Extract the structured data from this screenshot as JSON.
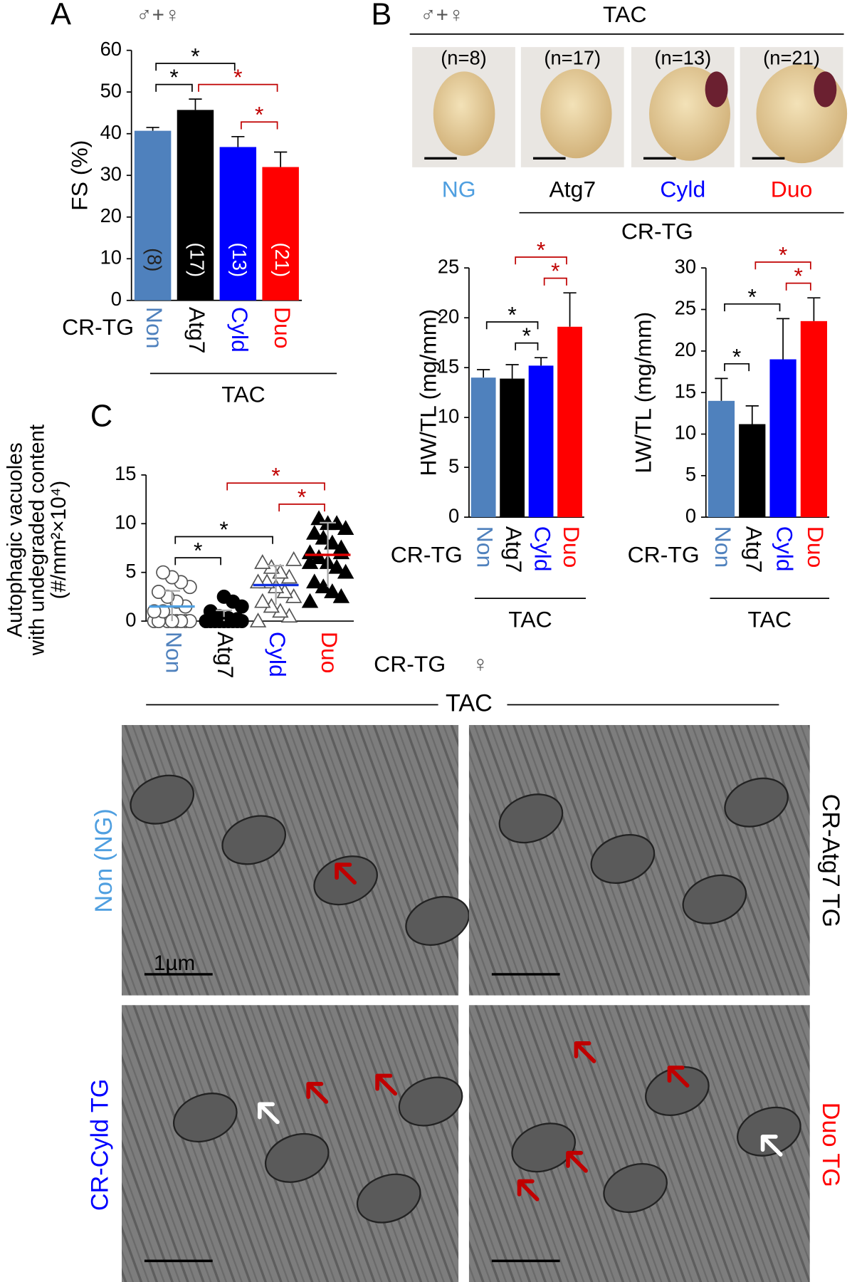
{
  "chart_data": [
    {
      "type": "bar",
      "sex": "♂+♀",
      "ylabel": "FS (%)",
      "group_label": "CR-TG",
      "treatment": "TAC",
      "categories": [
        "Non",
        "Atg7",
        "Cyld",
        "Duo"
      ],
      "category_colors": [
        "#4f81bd",
        "#000000",
        "#0000ff",
        "#ff0000"
      ],
      "values": [
        40.7,
        45.7,
        36.8,
        32.0
      ],
      "errors": [
        0.8,
        2.6,
        2.5,
        3.6
      ],
      "counts": [
        "(8)",
        "(17)",
        "(13)",
        "(21)"
      ],
      "ylim": [
        0,
        60
      ],
      "yticks": [
        0,
        10,
        20,
        30,
        40,
        50,
        60
      ],
      "significance": [
        {
          "pair": [
            0,
            1
          ],
          "label": "*",
          "color": "#000000"
        },
        {
          "pair": [
            2,
            3
          ],
          "label": "*",
          "color": "#c00000"
        },
        {
          "pair": [
            1,
            3
          ],
          "label": "*",
          "color": "#c00000"
        },
        {
          "pair": [
            0,
            2
          ],
          "label": "*",
          "color": "#000000"
        }
      ]
    },
    {
      "type": "bar",
      "ylabel": "HW/TL (mg/mm)",
      "group_label": "CR-TG",
      "treatment": "TAC",
      "categories": [
        "Non",
        "Atg7",
        "Cyld",
        "Duo"
      ],
      "category_colors": [
        "#4f81bd",
        "#000000",
        "#0000ff",
        "#ff0000"
      ],
      "values": [
        14.0,
        13.9,
        15.2,
        19.1
      ],
      "errors": [
        0.8,
        1.4,
        0.8,
        3.4
      ],
      "ylim": [
        0,
        25
      ],
      "yticks": [
        0,
        5,
        10,
        15,
        20,
        25
      ],
      "significance": [
        {
          "pair": [
            1,
            2
          ],
          "label": "*",
          "color": "#000000"
        },
        {
          "pair": [
            0,
            2
          ],
          "label": "*",
          "color": "#000000"
        },
        {
          "pair": [
            2,
            3
          ],
          "label": "*",
          "color": "#c00000"
        },
        {
          "pair": [
            1,
            3
          ],
          "label": "*",
          "color": "#c00000"
        }
      ]
    },
    {
      "type": "bar",
      "ylabel": "LW/TL (mg/mm)",
      "group_label": "CR-TG",
      "treatment": "TAC",
      "categories": [
        "Non",
        "Atg7",
        "Cyld",
        "Duo"
      ],
      "category_colors": [
        "#4f81bd",
        "#000000",
        "#0000ff",
        "#ff0000"
      ],
      "values": [
        14.0,
        11.2,
        19.0,
        23.6
      ],
      "errors": [
        2.7,
        2.2,
        4.9,
        2.8
      ],
      "ylim": [
        0,
        30
      ],
      "yticks": [
        0,
        5,
        10,
        15,
        20,
        25,
        30
      ],
      "significance": [
        {
          "pair": [
            0,
            1
          ],
          "label": "*",
          "color": "#000000"
        },
        {
          "pair": [
            0,
            2
          ],
          "label": "*",
          "color": "#000000"
        },
        {
          "pair": [
            2,
            3
          ],
          "label": "*",
          "color": "#c00000"
        },
        {
          "pair": [
            1,
            3
          ],
          "label": "*",
          "color": "#c00000"
        }
      ]
    },
    {
      "type": "strip",
      "ylabel": [
        "Autophagic vacuoles",
        "with undegraded content",
        "(#/mm²×10⁴)"
      ],
      "categories": [
        "Non",
        "Atg7",
        "Cyld",
        "Duo"
      ],
      "category_colors": [
        "#4f81bd",
        "#000000",
        "#0000ff",
        "#ff0000"
      ],
      "mean_colors": [
        "#4f9fe0",
        "#000000",
        "#1030e0",
        "#e00000"
      ],
      "markers": [
        "open-circle",
        "filled-circle",
        "open-triangle",
        "filled-triangle"
      ],
      "points": [
        [
          0,
          0,
          0,
          0,
          0,
          0,
          0,
          0,
          1,
          1,
          1.5,
          2,
          2.5,
          3,
          3.5,
          4,
          4.5,
          5
        ],
        [
          0,
          0,
          0,
          0,
          0,
          0,
          0,
          0,
          0,
          0,
          0.2,
          0.3,
          0.5,
          1,
          1.5,
          2,
          2.5
        ],
        [
          0,
          0.5,
          1,
          1.5,
          2,
          2.5,
          3,
          3.5,
          4,
          4,
          4.5,
          5,
          5.5,
          6,
          6.3
        ],
        [
          2,
          2.5,
          3,
          3.5,
          4,
          5,
          5.5,
          6,
          6.5,
          7,
          7.5,
          8,
          8.5,
          9,
          9.5,
          10,
          10,
          10.5,
          6,
          7
        ]
      ],
      "means": [
        1.5,
        0.3,
        3.7,
        6.8
      ],
      "sd": [
        1.6,
        0.8,
        2.0,
        3.3
      ],
      "ylim": [
        0,
        15
      ],
      "yticks": [
        0,
        5,
        10,
        15
      ],
      "significance": [
        {
          "pair": [
            0,
            1
          ],
          "label": "*",
          "color": "#000000"
        },
        {
          "pair": [
            0,
            2
          ],
          "label": "*",
          "color": "#000000"
        },
        {
          "pair": [
            2,
            3
          ],
          "label": "*",
          "color": "#c00000"
        },
        {
          "pair": [
            1,
            3
          ],
          "label": "*",
          "color": "#c00000"
        }
      ]
    }
  ],
  "figure": {
    "panels": [
      "A",
      "B",
      "C"
    ],
    "photos": {
      "sex": "♂+♀",
      "treatment": "TAC",
      "counts": [
        "(n=8)",
        "(n=17)",
        "(n=13)",
        "(n=21)"
      ],
      "labels": [
        "NG",
        "Atg7",
        "Cyld",
        "Duo"
      ],
      "label_colors": [
        "#4f9fe0",
        "#000000",
        "#0000ff",
        "#ff0000"
      ],
      "group_label": "CR-TG"
    },
    "em": {
      "group_label": "CR-TG",
      "sex": "♀",
      "treatment": "TAC",
      "labels": [
        "Non (NG)",
        "CR-Atg7 TG",
        "CR-Cyld TG",
        "Duo TG"
      ],
      "label_colors": [
        "#4f9fe0",
        "#000000",
        "#0000ff",
        "#ff0000"
      ],
      "scale": "1µm"
    }
  }
}
